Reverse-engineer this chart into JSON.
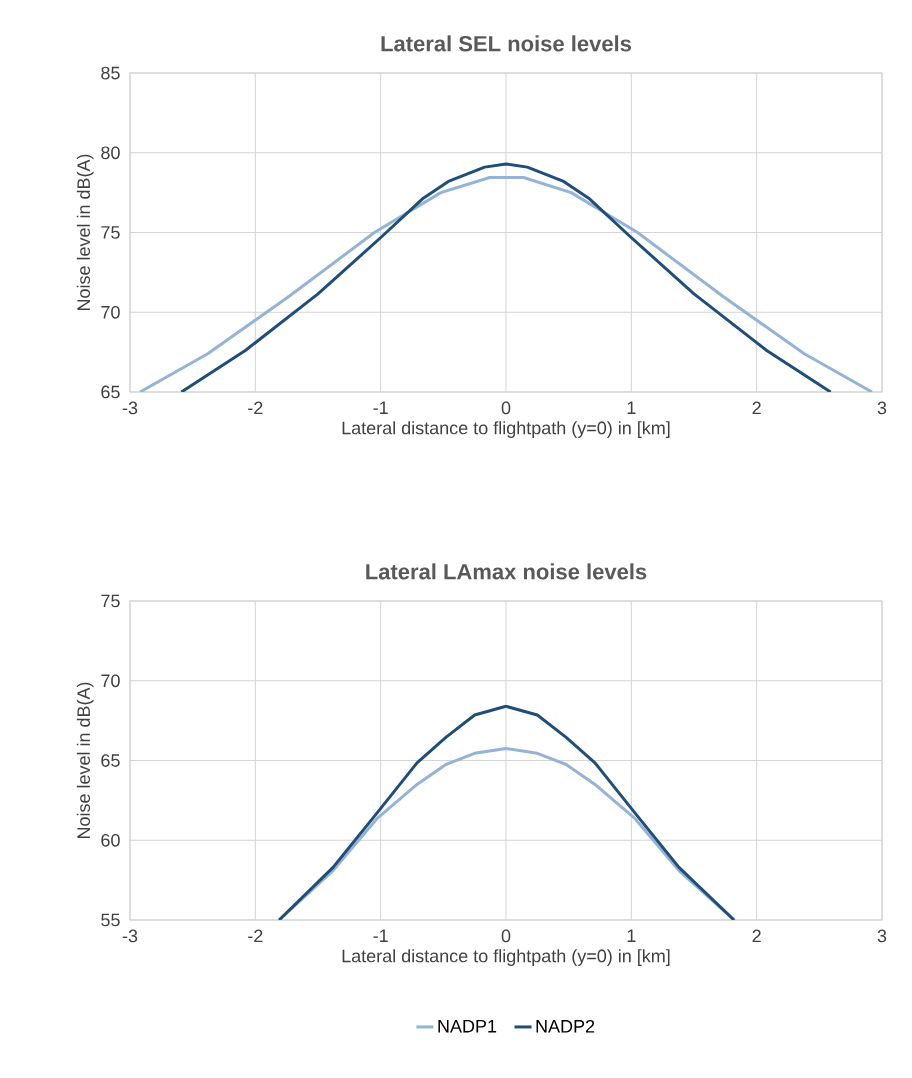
{
  "chart_data": [
    {
      "type": "line",
      "title": "Lateral SEL noise levels",
      "xlabel": "Lateral distance to flightpath (y=0) in [km]",
      "ylabel": "Noise level in dB(A)",
      "xlim": [
        -3,
        3
      ],
      "ylim": [
        65,
        85
      ],
      "xticks": [
        -3,
        -2,
        -1,
        0,
        1,
        2,
        3
      ],
      "yticks": [
        65,
        70,
        75,
        80,
        85
      ],
      "grid": true,
      "legend": false,
      "series": [
        {
          "color": "#95b3d7",
          "x": [
            -2.92,
            -2.38,
            -1.73,
            -1.05,
            -0.52,
            -0.13,
            0.14,
            0.52,
            1.05,
            1.73,
            2.38,
            2.92
          ],
          "values": [
            65,
            67.4,
            71.0,
            75.0,
            77.5,
            78.45,
            78.45,
            77.5,
            75.0,
            71.0,
            67.4,
            65
          ]
        },
        {
          "color": "#1f4e79",
          "x": [
            -2.59,
            -2.08,
            -1.5,
            -0.99,
            -0.66,
            -0.46,
            -0.17,
            0,
            0.17,
            0.46,
            0.66,
            0.99,
            1.5,
            2.08,
            2.59
          ],
          "values": [
            65,
            67.6,
            71.15,
            74.75,
            77.15,
            78.2,
            79.1,
            79.3,
            79.1,
            78.2,
            77.15,
            74.75,
            71.15,
            67.6,
            65
          ]
        }
      ]
    },
    {
      "type": "line",
      "title": "Lateral LAmax noise levels",
      "xlabel": "Lateral distance to flightpath (y=0) in [km]",
      "ylabel": "Noise level in dB(A)",
      "xlim": [
        -3,
        3
      ],
      "ylim": [
        55,
        75
      ],
      "xticks": [
        -3,
        -2,
        -1,
        0,
        1,
        2,
        3
      ],
      "yticks": [
        55,
        60,
        65,
        70,
        75
      ],
      "grid": true,
      "legend": "bottom",
      "series": [
        {
          "name": "NADP1",
          "color": "#95b3d7",
          "x": [
            -1.81,
            -1.38,
            -1.03,
            -0.71,
            -0.48,
            -0.25,
            0,
            0.25,
            0.48,
            0.71,
            1.03,
            1.38,
            1.82
          ],
          "values": [
            55,
            58.1,
            61.35,
            63.5,
            64.75,
            65.45,
            65.75,
            65.45,
            64.75,
            63.5,
            61.35,
            58.1,
            55
          ]
        },
        {
          "name": "NADP2",
          "color": "#1f4e79",
          "x": [
            -1.81,
            -1.38,
            -1.03,
            -0.71,
            -0.48,
            -0.25,
            0,
            0.25,
            0.48,
            0.71,
            1.03,
            1.38,
            1.82
          ],
          "values": [
            55,
            58.3,
            61.7,
            64.85,
            66.45,
            67.85,
            68.4,
            67.85,
            66.45,
            64.85,
            61.7,
            58.3,
            55
          ]
        }
      ]
    }
  ]
}
